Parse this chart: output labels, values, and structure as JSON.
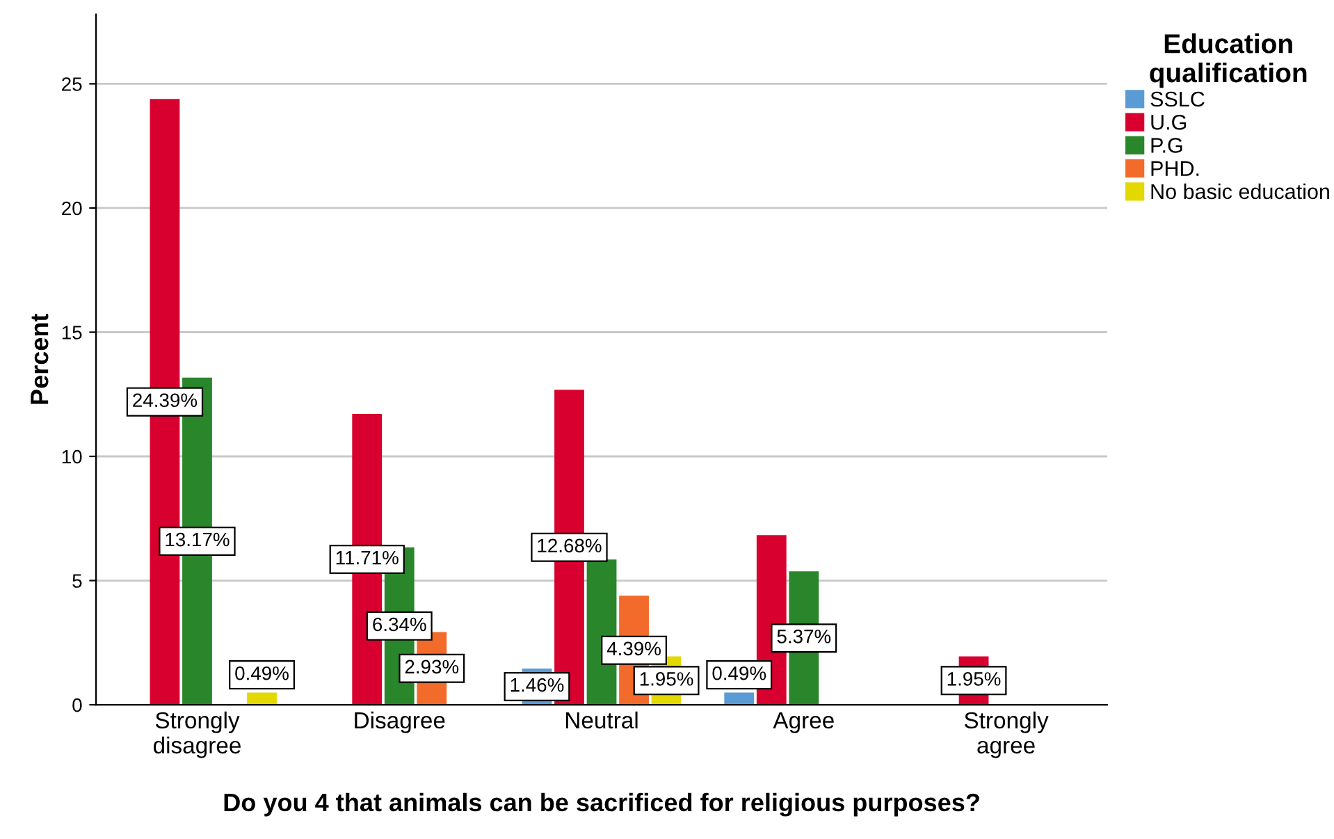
{
  "chart_data": {
    "type": "bar",
    "xlabel": "Do you 4 that animals can be sacrificed for religious purposes?",
    "ylabel": "Percent",
    "legend_title": "Education qualification",
    "legend": "right",
    "grid": "y",
    "categories": [
      "Strongly disagree",
      "Disagree",
      "Neutral",
      "Agree",
      "Strongly agree"
    ],
    "ylim": [
      0,
      27.8
    ],
    "yticks": [
      0,
      5,
      10,
      15,
      20,
      25
    ],
    "series": [
      {
        "name": "SSLC",
        "color": "#5b9bd5",
        "values": [
          null,
          null,
          1.46,
          0.49,
          null
        ],
        "value_labels": [
          null,
          null,
          "1.46%",
          "0.49%",
          null
        ]
      },
      {
        "name": "U.G",
        "color": "#d8002e",
        "values": [
          24.39,
          11.71,
          12.68,
          6.83,
          1.95
        ],
        "value_labels": [
          "24.39%",
          "11.71%",
          "12.68%",
          null,
          "1.95%"
        ]
      },
      {
        "name": "P.G",
        "color": "#2a862a",
        "values": [
          13.17,
          6.34,
          5.85,
          5.37,
          null
        ],
        "value_labels": [
          "13.17%",
          "6.34%",
          null,
          "5.37%",
          null
        ]
      },
      {
        "name": "PHD.",
        "color": "#f26b2a",
        "values": [
          null,
          2.93,
          4.39,
          null,
          null
        ],
        "value_labels": [
          null,
          "2.93%",
          "4.39%",
          null,
          null
        ]
      },
      {
        "name": "No basic education",
        "color": "#e3d800",
        "values": [
          0.49,
          null,
          1.95,
          null,
          null
        ],
        "value_labels": [
          "0.49%",
          null,
          "1.95%",
          null,
          null
        ]
      }
    ]
  }
}
